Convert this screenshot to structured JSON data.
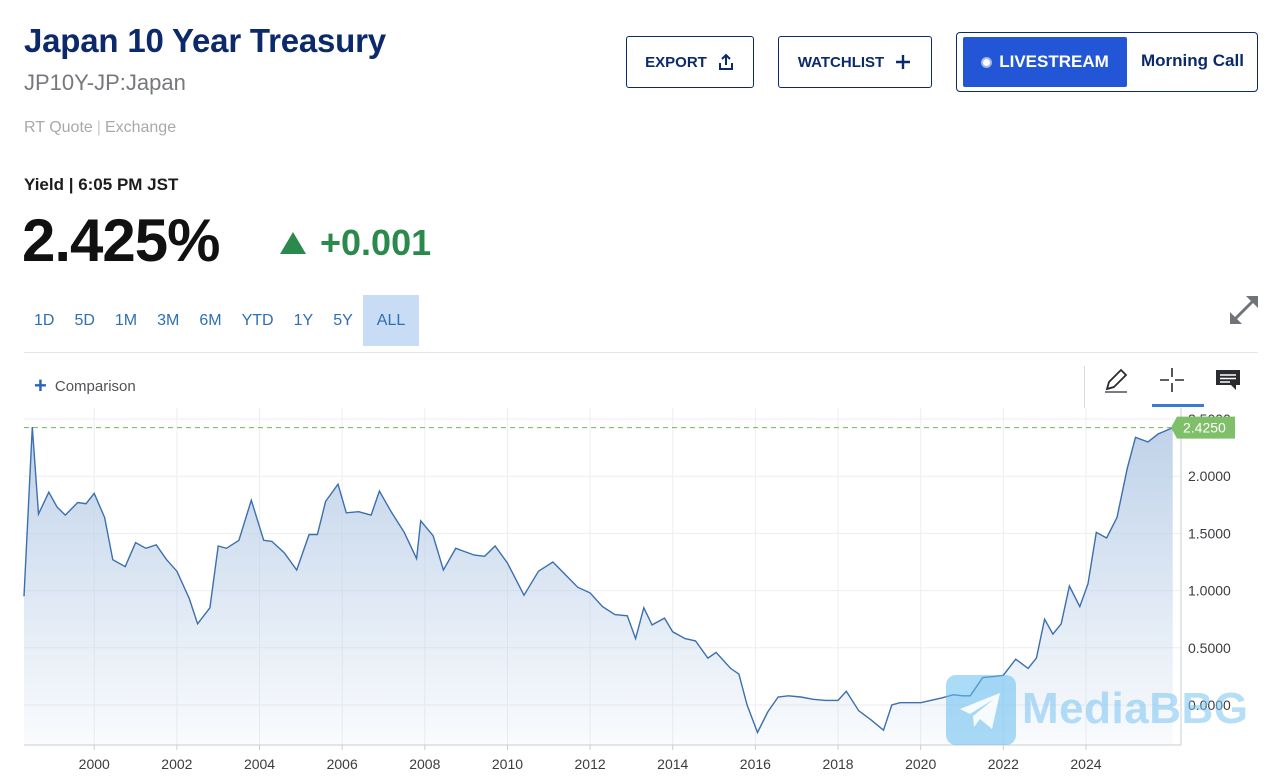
{
  "header": {
    "title": "Japan 10 Year Treasury",
    "symbol": "JP10Y-JP:Japan",
    "quote_type": "RT Quote",
    "quote_sep": "|",
    "quote_source": "Exchange"
  },
  "toolbar": {
    "export_label": "EXPORT",
    "watchlist_label": "WATCHLIST",
    "livestream_label": "LIVESTREAM",
    "morning_call_label": "Morning Call"
  },
  "quote": {
    "yield_time": "Yield | 6:05 PM JST",
    "price": "2.425%",
    "change": "+0.001",
    "change_color": "#2b8a4b"
  },
  "ranges": [
    "1D",
    "5D",
    "1M",
    "3M",
    "6M",
    "YTD",
    "1Y",
    "5Y",
    "ALL"
  ],
  "active_range": "ALL",
  "comparison_label": "Comparison",
  "tools": [
    "pencil-icon",
    "crosshair-icon",
    "comment-icon"
  ],
  "watermark": {
    "text": "MediaBBG",
    "icon": "telegram-icon"
  },
  "chart_data": {
    "type": "area",
    "title": "",
    "xlabel": "",
    "ylabel": "",
    "x_ticks": [
      "2000",
      "2002",
      "2004",
      "2006",
      "2008",
      "2010",
      "2012",
      "2014",
      "2016",
      "2018",
      "2020",
      "2022",
      "2024"
    ],
    "y_ticks": [
      "0.0000",
      "0.5000",
      "1.0000",
      "1.5000",
      "2.0000",
      "2.5000"
    ],
    "ylim": [
      -0.35,
      2.5
    ],
    "xlim": [
      1998.3,
      2026.3
    ],
    "last_value_label": "2.4250",
    "last_value": 2.425,
    "line_color": "#3b6fae",
    "fill_color": "#bcd0e8",
    "last_label_color": "#7fbf6a",
    "grid": true,
    "series": [
      {
        "x": [
          1998.3,
          1998.5,
          1998.65,
          1998.9,
          1999.1,
          1999.3,
          1999.6,
          1999.8,
          2000.0,
          2000.25,
          2000.45,
          2000.75,
          2001.0,
          2001.25,
          2001.5,
          2001.75,
          2002.0,
          2002.3,
          2002.5,
          2002.8,
          2003.0,
          2003.2,
          2003.5,
          2003.8,
          2004.1,
          2004.3,
          2004.6,
          2004.9,
          2005.2,
          2005.4,
          2005.6,
          2005.9,
          2006.1,
          2006.4,
          2006.7,
          2006.9,
          2007.2,
          2007.5,
          2007.8,
          2007.9,
          2008.2,
          2008.45,
          2008.75,
          2008.9,
          2009.2,
          2009.45,
          2009.7,
          2010.0,
          2010.4,
          2010.75,
          2011.1,
          2011.4,
          2011.7,
          2012.0,
          2012.3,
          2012.6,
          2012.9,
          2013.1,
          2013.3,
          2013.5,
          2013.8,
          2014.0,
          2014.3,
          2014.55,
          2014.85,
          2015.05,
          2015.4,
          2015.6,
          2015.8,
          2016.05,
          2016.3,
          2016.55,
          2016.8,
          2017.1,
          2017.4,
          2017.7,
          2018.0,
          2018.2,
          2018.5,
          2018.8,
          2019.1,
          2019.3,
          2019.5,
          2019.8,
          2020.0,
          2020.5,
          2020.8,
          2021.0,
          2021.2,
          2021.5,
          2021.8,
          2022.0,
          2022.3,
          2022.6,
          2022.8,
          2023.0,
          2023.2,
          2023.4,
          2023.6,
          2023.85,
          2024.05,
          2024.25,
          2024.5,
          2024.75,
          2025.0,
          2025.2,
          2025.5,
          2025.75,
          2025.95,
          2026.1
        ],
        "y": [
          0.95,
          2.43,
          1.67,
          1.86,
          1.73,
          1.66,
          1.77,
          1.76,
          1.85,
          1.64,
          1.27,
          1.21,
          1.42,
          1.37,
          1.4,
          1.27,
          1.17,
          0.93,
          0.71,
          0.85,
          1.39,
          1.37,
          1.44,
          1.79,
          1.44,
          1.43,
          1.33,
          1.18,
          1.49,
          1.49,
          1.78,
          1.93,
          1.68,
          1.69,
          1.66,
          1.87,
          1.68,
          1.51,
          1.28,
          1.61,
          1.48,
          1.18,
          1.37,
          1.35,
          1.31,
          1.3,
          1.39,
          1.24,
          0.96,
          1.17,
          1.25,
          1.14,
          1.03,
          0.98,
          0.86,
          0.79,
          0.78,
          0.58,
          0.85,
          0.7,
          0.76,
          0.64,
          0.58,
          0.56,
          0.41,
          0.46,
          0.32,
          0.27,
          0.0,
          -0.24,
          -0.06,
          0.07,
          0.08,
          0.07,
          0.05,
          0.04,
          0.04,
          0.12,
          -0.05,
          -0.13,
          -0.22,
          0.0,
          0.02,
          0.02,
          0.02,
          0.06,
          0.09,
          0.08,
          0.08,
          0.24,
          0.25,
          0.26,
          0.4,
          0.32,
          0.41,
          0.75,
          0.62,
          0.71,
          1.04,
          0.86,
          1.06,
          1.51,
          1.46,
          1.64,
          2.07,
          2.34,
          2.3,
          2.37,
          2.4,
          2.425
        ]
      }
    ]
  }
}
